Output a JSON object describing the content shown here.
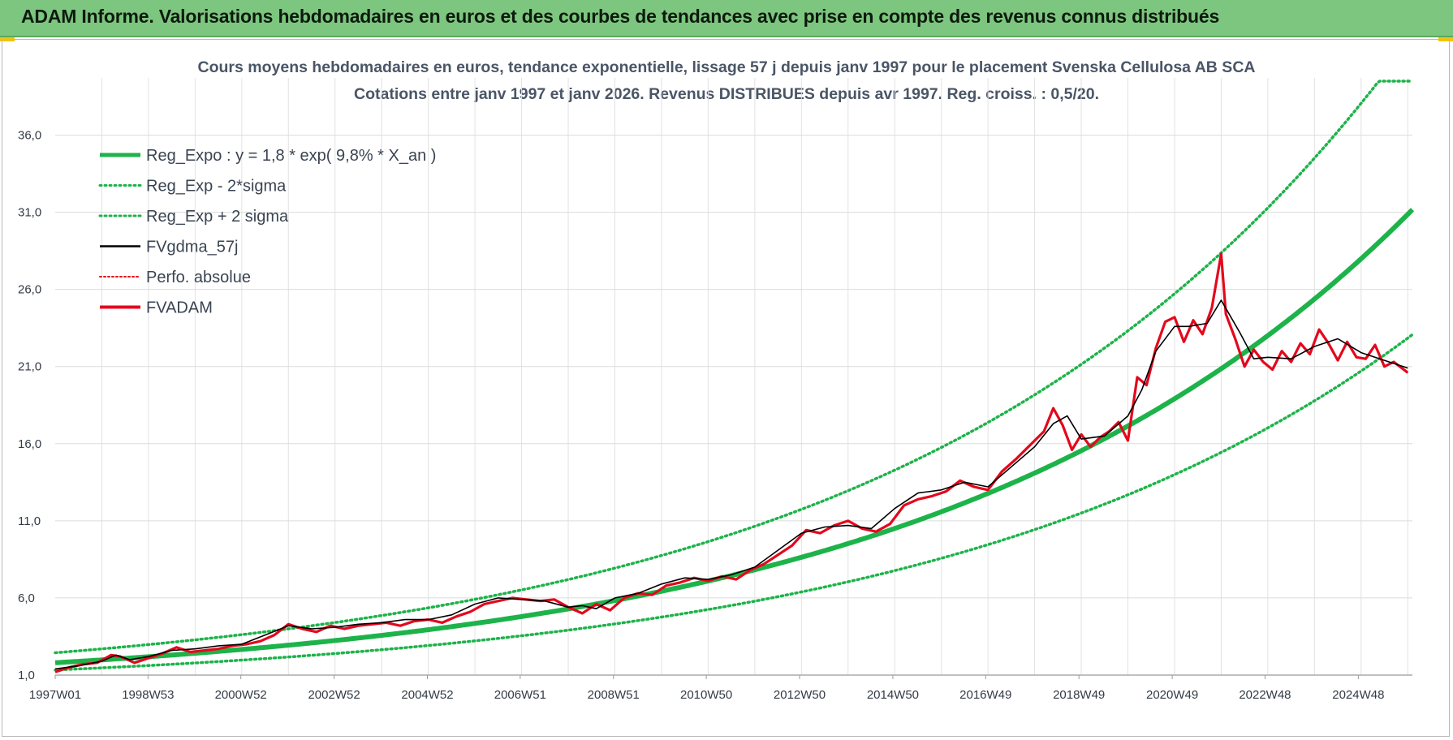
{
  "banner": {
    "title": "ADAM Informe. Valorisations hebdomadaires en euros et des courbes de tendances avec prise en compte des revenus connus distribués"
  },
  "chart_data": {
    "type": "line",
    "title": "Cours moyens hebdomadaires en euros, tendance exponentielle, lissage 57 j depuis janv 1997 pour le placement Svenska Cellulosa AB SCA",
    "subtitle": "Cotations entre janv 1997 et janv 2026. Revenus DISTRIBUES depuis avr 1997. Reg. croiss. : 0,5/20.",
    "xlabel": "",
    "ylabel": "",
    "ylim": [
      1.0,
      39.5
    ],
    "xlim": [
      1997.0,
      2026.1
    ],
    "yticks": [
      "1,0",
      "6,0",
      "11,0",
      "16,0",
      "21,0",
      "26,0",
      "31,0",
      "36,0"
    ],
    "ytick_values": [
      1,
      6,
      11,
      16,
      21,
      26,
      31,
      36
    ],
    "xticks": [
      "1997W01",
      "1998W53",
      "2000W52",
      "2002W52",
      "2004W52",
      "2006W51",
      "2008W51",
      "2010W50",
      "2012W50",
      "2014W50",
      "2016W49",
      "2018W49",
      "2020W49",
      "2022W48",
      "2024W48"
    ],
    "xtick_values": [
      1997.0,
      1998.99,
      2000.98,
      2002.98,
      2004.98,
      2006.97,
      2008.97,
      2010.96,
      2012.96,
      2014.96,
      2016.95,
      2018.95,
      2020.95,
      2022.94,
      2024.94
    ],
    "grid": true,
    "legend_position": "top-left",
    "regression": {
      "a": 1.8,
      "rate": 0.098,
      "x0": 1997.0,
      "sigma_factor_low": 0.74,
      "sigma_factor_high": 1.36
    },
    "series": [
      {
        "name": "Reg_Expo : y = 1,8 * exp( 9,8% *  X_an )",
        "style": "solid-thick",
        "color": "#1db34a"
      },
      {
        "name": "Reg_Exp - 2*sigma",
        "style": "dotted",
        "color": "#1db34a"
      },
      {
        "name": "Reg_Exp + 2 sigma",
        "style": "dotted",
        "color": "#1db34a"
      },
      {
        "name": "FVgdma_57j",
        "style": "solid-thin",
        "color": "#000000",
        "x": [
          1997.0,
          1997.5,
          1998.0,
          1998.3,
          1998.6,
          1999.0,
          1999.5,
          2000.0,
          2000.5,
          2001.0,
          2001.5,
          2002.0,
          2002.5,
          2003.0,
          2003.5,
          2004.0,
          2004.5,
          2005.0,
          2005.5,
          2006.0,
          2006.5,
          2007.0,
          2007.5,
          2008.0,
          2008.3,
          2008.6,
          2009.0,
          2009.5,
          2010.0,
          2010.5,
          2011.0,
          2011.5,
          2012.0,
          2012.5,
          2013.0,
          2013.5,
          2014.0,
          2014.5,
          2015.0,
          2015.5,
          2016.0,
          2016.5,
          2017.0,
          2017.5,
          2018.0,
          2018.4,
          2018.7,
          2019.0,
          2019.5,
          2020.0,
          2020.3,
          2020.6,
          2021.0,
          2021.3,
          2021.7,
          2022.0,
          2022.4,
          2022.7,
          2023.0,
          2023.5,
          2024.0,
          2024.5,
          2025.0,
          2025.5,
          2026.0
        ],
        "y": [
          1.4,
          1.6,
          1.9,
          2.3,
          2.0,
          2.2,
          2.6,
          2.7,
          2.9,
          3.0,
          3.6,
          4.2,
          4.0,
          4.1,
          4.3,
          4.4,
          4.6,
          4.6,
          4.9,
          5.6,
          6.0,
          5.9,
          5.8,
          5.4,
          5.5,
          5.3,
          6.0,
          6.3,
          6.9,
          7.3,
          7.2,
          7.5,
          8.0,
          9.1,
          10.2,
          10.6,
          10.7,
          10.5,
          11.8,
          12.8,
          13.0,
          13.5,
          13.2,
          14.5,
          15.8,
          17.3,
          17.8,
          16.3,
          16.5,
          17.8,
          19.5,
          22.0,
          23.6,
          23.6,
          23.8,
          25.3,
          23.2,
          21.5,
          21.6,
          21.5,
          22.3,
          22.8,
          21.9,
          21.4,
          20.9
        ]
      },
      {
        "name": "Perfo. absolue",
        "style": "dotted-thin",
        "color": "#e4081d"
      },
      {
        "name": "FVADAM",
        "style": "solid-medium",
        "color": "#e4081d",
        "x": [
          1997.0,
          1997.3,
          1997.6,
          1997.9,
          1998.2,
          1998.4,
          1998.7,
          1999.0,
          1999.3,
          1999.6,
          1999.9,
          2000.2,
          2000.5,
          2000.8,
          2001.1,
          2001.4,
          2001.7,
          2002.0,
          2002.3,
          2002.6,
          2002.9,
          2003.2,
          2003.5,
          2003.8,
          2004.1,
          2004.4,
          2004.7,
          2005.0,
          2005.3,
          2005.6,
          2005.9,
          2006.2,
          2006.5,
          2006.8,
          2007.1,
          2007.4,
          2007.7,
          2008.0,
          2008.3,
          2008.6,
          2008.9,
          2009.2,
          2009.5,
          2009.8,
          2010.1,
          2010.4,
          2010.7,
          2011.0,
          2011.3,
          2011.6,
          2011.9,
          2012.2,
          2012.5,
          2012.8,
          2013.1,
          2013.4,
          2013.7,
          2014.0,
          2014.3,
          2014.6,
          2014.9,
          2015.2,
          2015.5,
          2015.8,
          2016.1,
          2016.4,
          2016.7,
          2017.0,
          2017.3,
          2017.6,
          2017.9,
          2018.2,
          2018.4,
          2018.6,
          2018.8,
          2019.0,
          2019.2,
          2019.4,
          2019.6,
          2019.8,
          2020.0,
          2020.2,
          2020.4,
          2020.6,
          2020.8,
          2021.0,
          2021.2,
          2021.4,
          2021.6,
          2021.8,
          2022.0,
          2022.1,
          2022.3,
          2022.5,
          2022.7,
          2022.9,
          2023.1,
          2023.3,
          2023.5,
          2023.7,
          2023.9,
          2024.1,
          2024.3,
          2024.5,
          2024.7,
          2024.9,
          2025.1,
          2025.3,
          2025.5,
          2025.7,
          2026.0
        ],
        "y": [
          1.2,
          1.5,
          1.7,
          1.8,
          2.3,
          2.2,
          1.8,
          2.1,
          2.4,
          2.8,
          2.5,
          2.6,
          2.7,
          2.9,
          3.0,
          3.2,
          3.6,
          4.3,
          4.0,
          3.8,
          4.2,
          4.0,
          4.2,
          4.3,
          4.4,
          4.2,
          4.5,
          4.6,
          4.4,
          4.8,
          5.1,
          5.6,
          5.8,
          6.0,
          5.9,
          5.8,
          5.9,
          5.4,
          5.0,
          5.6,
          5.2,
          6.0,
          6.3,
          6.2,
          6.8,
          7.0,
          7.3,
          7.1,
          7.4,
          7.2,
          7.8,
          8.2,
          8.8,
          9.4,
          10.4,
          10.2,
          10.7,
          11.0,
          10.5,
          10.3,
          10.8,
          12.0,
          12.4,
          12.6,
          12.9,
          13.6,
          13.2,
          13.0,
          14.2,
          15.0,
          15.9,
          16.8,
          18.3,
          17.2,
          15.6,
          16.6,
          15.8,
          16.4,
          16.8,
          17.4,
          16.2,
          20.3,
          19.8,
          22.2,
          23.9,
          24.2,
          22.6,
          24.0,
          23.1,
          24.8,
          28.3,
          24.4,
          22.8,
          21.0,
          22.1,
          21.3,
          20.8,
          22.0,
          21.3,
          22.5,
          21.8,
          23.4,
          22.5,
          21.4,
          22.6,
          21.6,
          21.5,
          22.4,
          21.0,
          21.3,
          20.6
        ]
      }
    ]
  }
}
